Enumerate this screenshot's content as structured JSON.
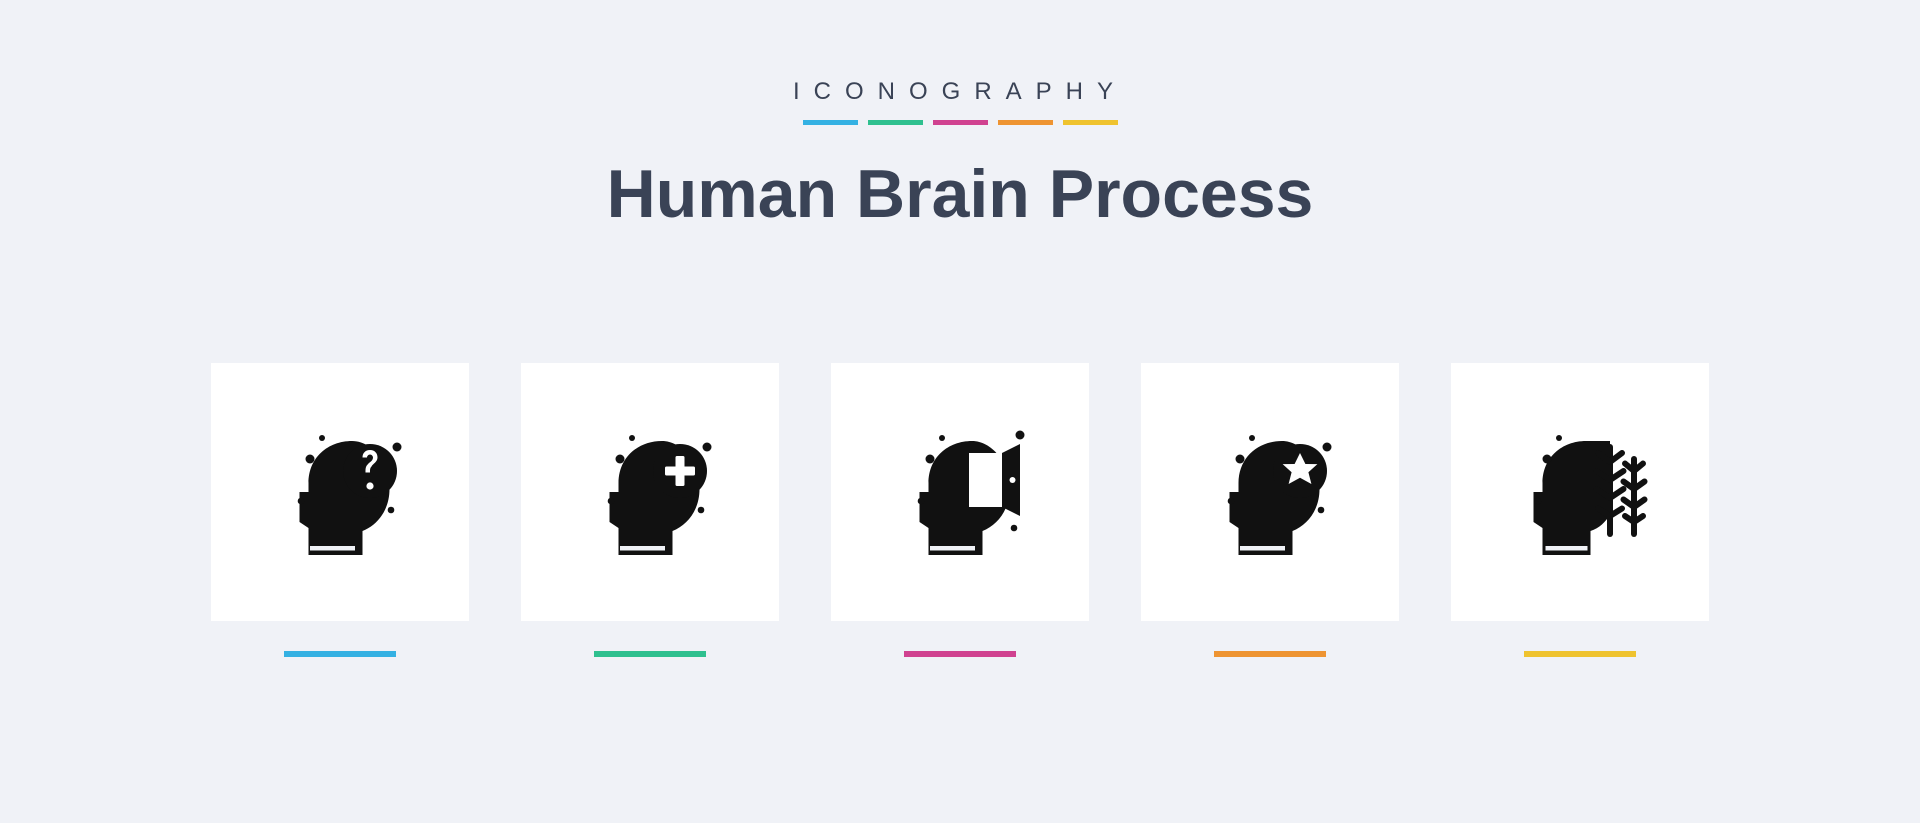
{
  "brand": "ICONOGRAPHY",
  "title": "Human Brain Process",
  "palette": {
    "page_bg": "#f0f2f7",
    "card_bg": "#ffffff",
    "text": "#3a4356",
    "glyph": "#111111"
  },
  "accent_colors": [
    "#34b1e3",
    "#2fc08f",
    "#d04290",
    "#ee9432",
    "#efc32f"
  ],
  "brand_underline": {
    "width": 55,
    "height": 5,
    "gap": 10
  },
  "card": {
    "size": 258,
    "gap": 52,
    "underline_width": 112,
    "underline_height": 6
  },
  "icons": [
    {
      "name": "question-mind-icon",
      "label": "question"
    },
    {
      "name": "medical-mind-icon",
      "label": "medical"
    },
    {
      "name": "open-door-mind-icon",
      "label": "open-door"
    },
    {
      "name": "star-mind-icon",
      "label": "star"
    },
    {
      "name": "feather-mind-icon",
      "label": "feather"
    }
  ]
}
